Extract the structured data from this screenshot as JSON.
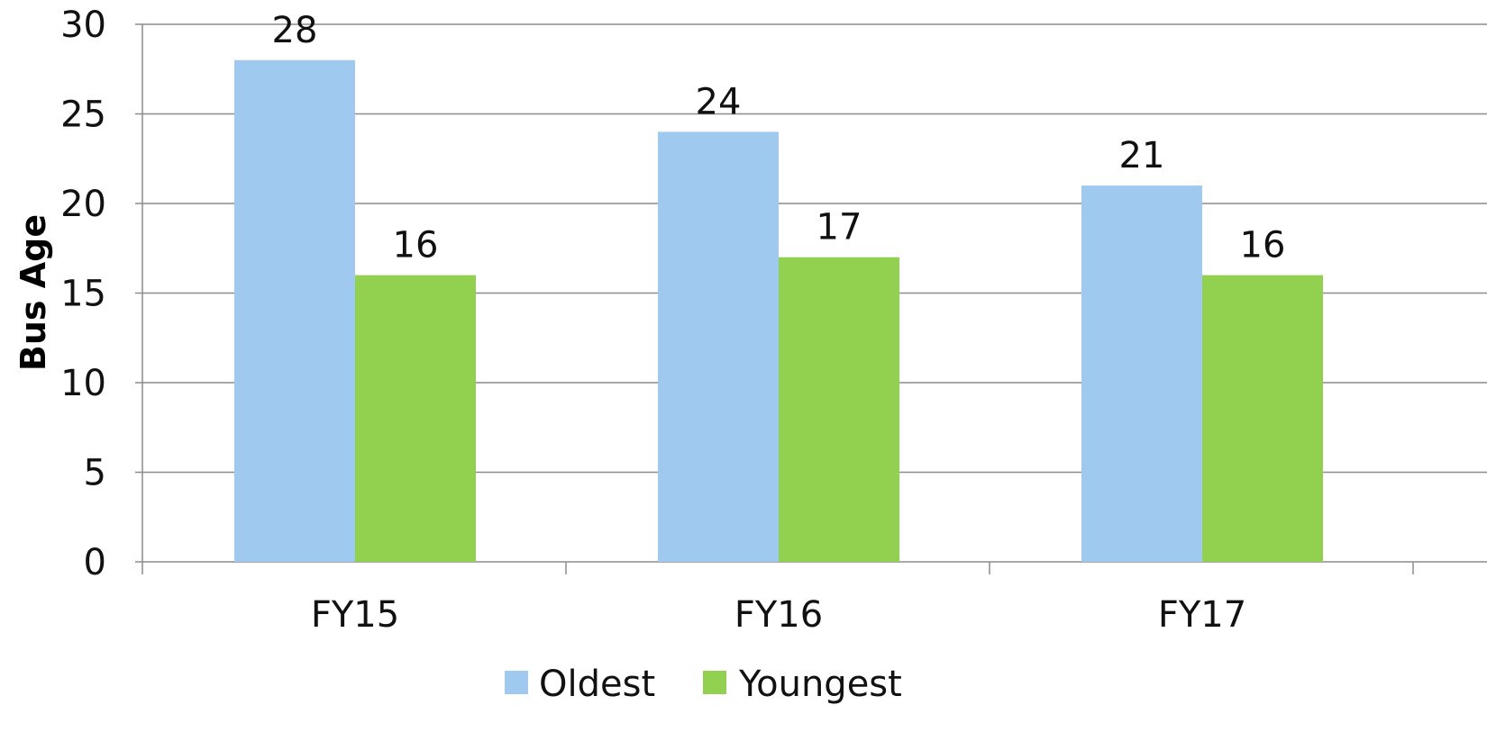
{
  "chart_data": {
    "type": "bar",
    "categories": [
      "FY15",
      "FY16",
      "FY17"
    ],
    "series": [
      {
        "name": "Oldest",
        "values": [
          28,
          24,
          21
        ],
        "color": "#a0c9f0"
      },
      {
        "name": "Youngest",
        "values": [
          16,
          17,
          16
        ],
        "color": "#92d050"
      }
    ],
    "title": "",
    "xlabel": "",
    "ylabel": "Bus Age",
    "ylim": [
      0,
      30
    ],
    "yticks": [
      0,
      5,
      10,
      15,
      20,
      25,
      30
    ],
    "grid": true,
    "legend_position": "bottom",
    "data_labels": true
  }
}
